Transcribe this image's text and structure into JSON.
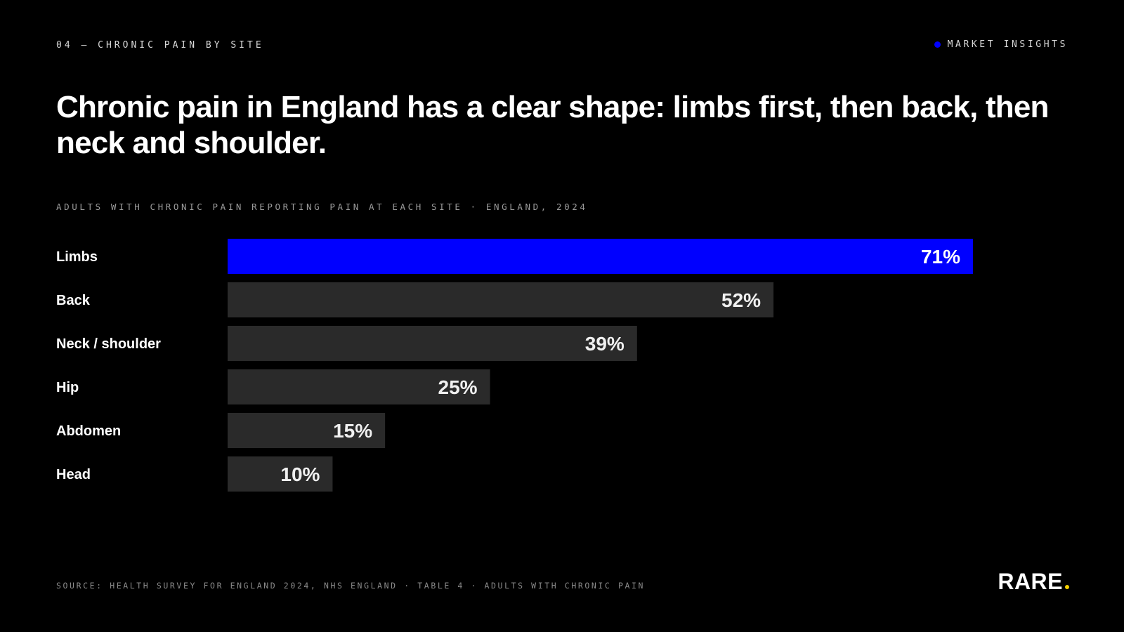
{
  "header": {
    "eyebrow": "04 — CHRONIC PAIN BY SITE",
    "tag": "MARKET INSIGHTS",
    "tag_dot_color": "#0000ff"
  },
  "headline": "Chronic pain in England has a clear shape: limbs first, then back, then neck and shoulder.",
  "footer": {
    "source": "SOURCE: HEALTH SURVEY FOR ENGLAND 2024, NHS ENGLAND · TABLE 4 · ADULTS WITH CHRONIC PAIN",
    "logo": "RARE",
    "logo_dot_color": "#f5d000"
  },
  "chart_data": {
    "type": "bar",
    "orientation": "horizontal",
    "subtitle": "ADULTS WITH CHRONIC PAIN REPORTING PAIN AT EACH SITE · ENGLAND, 2024",
    "categories": [
      "Limbs",
      "Back",
      "Neck / shoulder",
      "Hip",
      "Abdomen",
      "Head"
    ],
    "values": [
      71,
      52,
      39,
      25,
      15,
      10
    ],
    "value_labels": [
      "71%",
      "52%",
      "39%",
      "25%",
      "15%",
      "10%"
    ],
    "unit": "%",
    "highlight_index": 0,
    "highlight_color": "#0000ff",
    "bar_color": "#2a2a2a",
    "grid": false,
    "xlim": [
      0,
      71
    ]
  }
}
